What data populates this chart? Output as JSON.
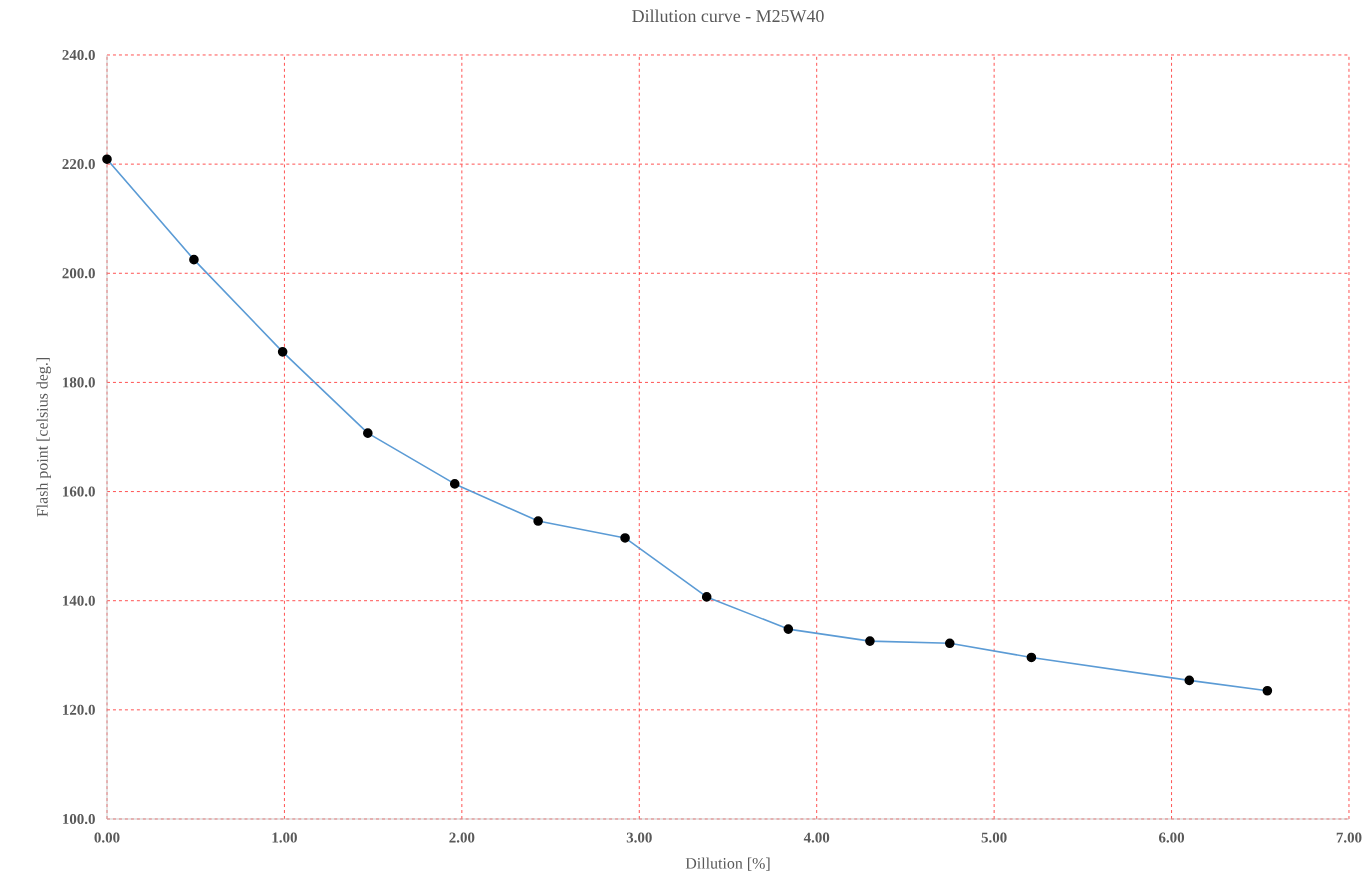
{
  "chart_data": {
    "type": "line",
    "title": "Dillution curve - M25W40",
    "xlabel": "Dillution [%]",
    "ylabel": "Flash point [celsius deg.]",
    "x": [
      0,
      0.49,
      0.99,
      1.47,
      1.96,
      2.43,
      2.92,
      3.38,
      3.84,
      4.3,
      4.75,
      5.21,
      6.1,
      6.54
    ],
    "series": [
      {
        "color": "#5b9bd5",
        "values": [
          220.9,
          202.5,
          185.6,
          170.7,
          161.4,
          154.6,
          151.5,
          140.7,
          134.8,
          132.6,
          132.2,
          129.6,
          125.4,
          123.5
        ]
      }
    ],
    "xlim": [
      0,
      7
    ],
    "ylim": [
      100,
      240
    ],
    "xticks": [
      {
        "value": 0,
        "label": "0.00"
      },
      {
        "value": 1,
        "label": "1.00"
      },
      {
        "value": 2,
        "label": "2.00"
      },
      {
        "value": 3,
        "label": "3.00"
      },
      {
        "value": 4,
        "label": "4.00"
      },
      {
        "value": 5,
        "label": "5.00"
      },
      {
        "value": 6,
        "label": "6.00"
      },
      {
        "value": 7,
        "label": "7.00"
      }
    ],
    "yticks": [
      {
        "value": 100,
        "label": "100.0"
      },
      {
        "value": 120,
        "label": "120.0"
      },
      {
        "value": 140,
        "label": "140.0"
      },
      {
        "value": 160,
        "label": "160.0"
      },
      {
        "value": 180,
        "label": "180.0"
      },
      {
        "value": 200,
        "label": "200.0"
      },
      {
        "value": 220,
        "label": "220.0"
      },
      {
        "value": 240,
        "label": "240.0"
      }
    ],
    "grid": true,
    "marker": "circle",
    "line_style": "solid"
  }
}
